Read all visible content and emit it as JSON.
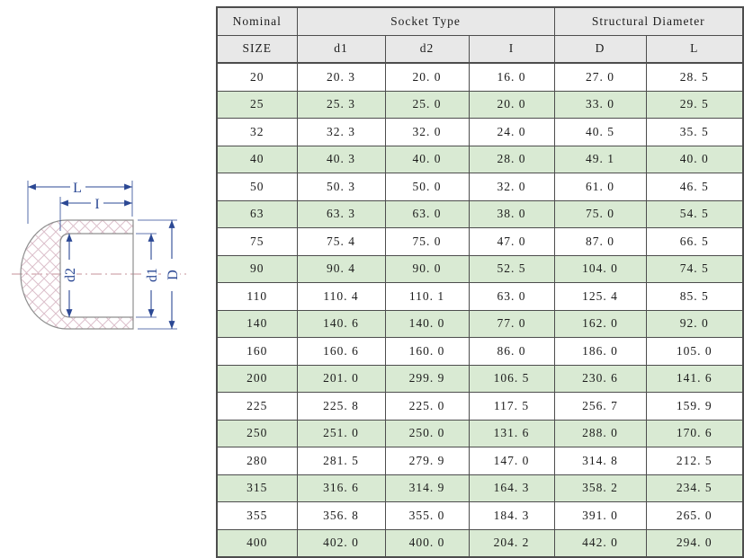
{
  "colors": {
    "row-alt": "#d9ead3",
    "header-bg": "#e8e8e8",
    "border": "#4d4d4d",
    "text": "#1c1c1c",
    "dimension": "#2b4894",
    "outline": "#8f8f8f",
    "hatch": "#dcc0cb",
    "centerline": "#c49099",
    "page-bg": "#ffffff"
  },
  "diagram": {
    "labels": {
      "L": "L",
      "I": "I",
      "d2": "d2",
      "d1": "d1",
      "D": "D"
    }
  },
  "table": {
    "header": {
      "nominal": "Nominal",
      "size": "SIZE",
      "socket_type": "Socket Type",
      "structural_diameter": "Structural Diameter",
      "columns": [
        "d1",
        "d2",
        "I",
        "D",
        "L"
      ]
    },
    "rows": [
      [
        "20",
        "20.3",
        "20.0",
        "16.0",
        "27.0",
        "28.5"
      ],
      [
        "25",
        "25.3",
        "25.0",
        "20.0",
        "33.0",
        "29.5"
      ],
      [
        "32",
        "32.3",
        "32.0",
        "24.0",
        "40.5",
        "35.5"
      ],
      [
        "40",
        "40.3",
        "40.0",
        "28.0",
        "49.1",
        "40.0"
      ],
      [
        "50",
        "50.3",
        "50.0",
        "32.0",
        "61.0",
        "46.5"
      ],
      [
        "63",
        "63.3",
        "63.0",
        "38.0",
        "75.0",
        "54.5"
      ],
      [
        "75",
        "75.4",
        "75.0",
        "47.0",
        "87.0",
        "66.5"
      ],
      [
        "90",
        "90.4",
        "90.0",
        "52.5",
        "104.0",
        "74.5"
      ],
      [
        "110",
        "110.4",
        "110.1",
        "63.0",
        "125.4",
        "85.5"
      ],
      [
        "140",
        "140.6",
        "140.0",
        "77.0",
        "162.0",
        "92.0"
      ],
      [
        "160",
        "160.6",
        "160.0",
        "86.0",
        "186.0",
        "105.0"
      ],
      [
        "200",
        "201.0",
        "299.9",
        "106.5",
        "230.6",
        "141.6"
      ],
      [
        "225",
        "225.8",
        "225.0",
        "117.5",
        "256.7",
        "159.9"
      ],
      [
        "250",
        "251.0",
        "250.0",
        "131.6",
        "288.0",
        "170.6"
      ],
      [
        "280",
        "281.5",
        "279.9",
        "147.0",
        "314.8",
        "212.5"
      ],
      [
        "315",
        "316.6",
        "314.9",
        "164.3",
        "358.2",
        "234.5"
      ],
      [
        "355",
        "356.8",
        "355.0",
        "184.3",
        "391.0",
        "265.0"
      ],
      [
        "400",
        "402.0",
        "400.0",
        "204.2",
        "442.0",
        "294.0"
      ]
    ]
  }
}
